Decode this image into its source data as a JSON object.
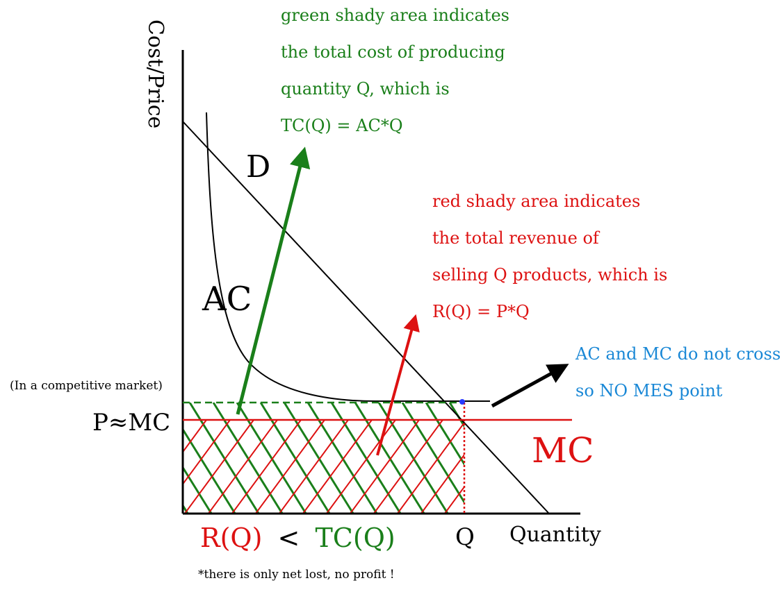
{
  "colors": {
    "axis": "#000000",
    "green": "#1a7f1a",
    "red": "#dd1111",
    "blue": "#1a88d6",
    "black": "#000000",
    "dot": "#2a3cff"
  },
  "axes": {
    "y_label": "Cost/Price",
    "x_label": "Quantity",
    "q_label": "Q"
  },
  "curves": {
    "demand_label": "D",
    "ac_label": "AC",
    "mc_label": "MC"
  },
  "labels": {
    "competitive_market": "(In a competitive market)",
    "p_mc": "P≈MC",
    "r_part": "R(Q)",
    "lt_symbol": "<",
    "tc_part": "TC(Q)",
    "footnote": "*there is only net lost, no profit !"
  },
  "annotations": {
    "green_lines": [
      "green shady area indicates",
      "the total cost of producing",
      "quantity Q, which is",
      "TC(Q) = AC*Q"
    ],
    "red_lines": [
      "red shady area indicates",
      "the total revenue of",
      "selling Q products, which is",
      "R(Q) = P*Q"
    ],
    "blue_lines": [
      "AC and MC do not cross",
      "so NO MES point"
    ]
  }
}
